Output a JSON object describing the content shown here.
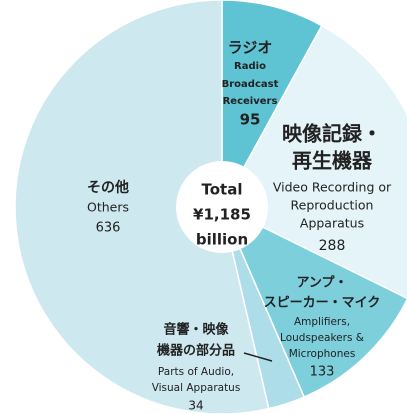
{
  "chart_data": {
    "type": "pie",
    "values": [
      95,
      288,
      133,
      34,
      636
    ],
    "colors": [
      "#5ec3d3",
      "#e4f4f8",
      "#7ecfdc",
      "#acdde8",
      "#cde8ef"
    ],
    "labels_ja": [
      [
        "ラジオ"
      ],
      [
        "映像記録・",
        "再生機器"
      ],
      [
        "アンプ・",
        "スピーカー・マイク"
      ],
      [
        "音響・映像",
        "機器の部分品"
      ],
      [
        "その他"
      ]
    ],
    "labels_en": [
      [
        "Radio",
        "Broadcast",
        "Receivers"
      ],
      [
        "Video Recording or",
        "Reproduction",
        "Apparatus"
      ],
      [
        "Amplifiers,",
        "Loudspeakers &",
        "Microphones"
      ],
      [
        "Parts of Audio,",
        "Visual Apparatus"
      ],
      [
        "Others"
      ]
    ],
    "center_label": [
      "Total",
      "¥1,185",
      "billion"
    ]
  }
}
